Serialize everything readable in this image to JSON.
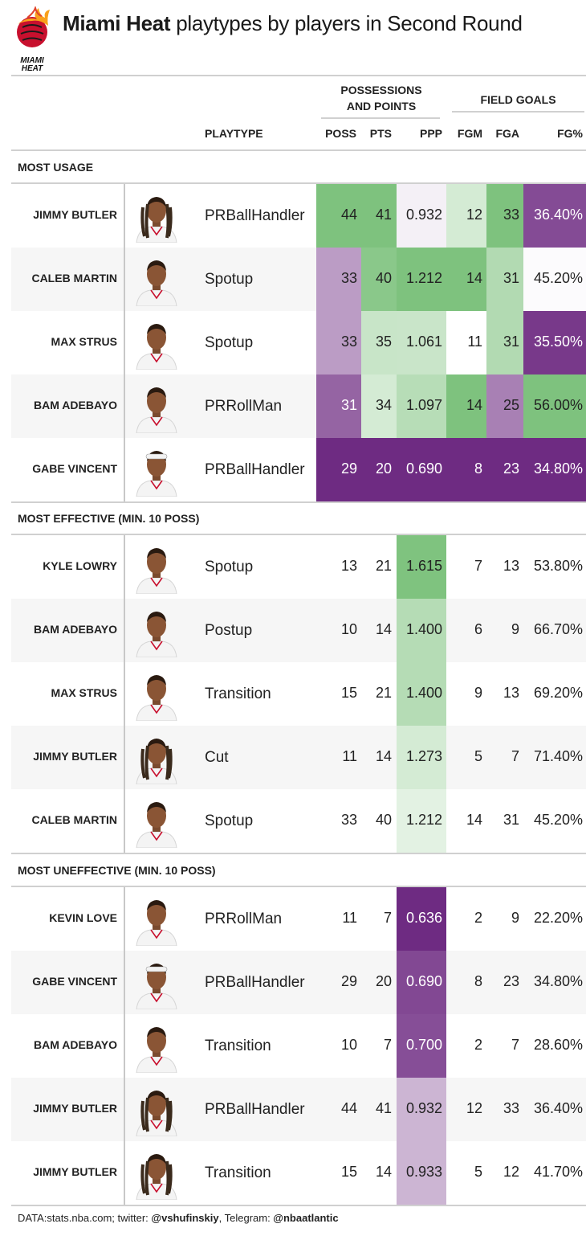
{
  "title": {
    "bold": "Miami Heat",
    "rest": " playtypes by players in Second Round"
  },
  "logo": {
    "icon": "miami-heat-logo",
    "wordmark_line1": "MIAMI",
    "wordmark_line2": "HEAT"
  },
  "headers": {
    "group1_line1": "POSSESSIONS",
    "group1_line2": "AND POINTS",
    "group2": "FIELD GOALS",
    "playtype": "PLAYTYPE",
    "poss": "POSS",
    "pts": "PTS",
    "ppp": "PPP",
    "fgm": "FGM",
    "fga": "FGA",
    "fgpct": "FG%"
  },
  "colors": {
    "green_strong": "#7ec27e",
    "purple_strong": "#6e2b82",
    "row_alt": "#f6f6f6",
    "rule": "#d0d0d0"
  },
  "chart_data": {
    "type": "table",
    "columns": [
      "PLAYTYPE",
      "POSS",
      "PTS",
      "PPP",
      "FGM",
      "FGA",
      "FG%"
    ],
    "sections": [
      {
        "title": "MOST USAGE",
        "rows": [
          {
            "player": "JIMMY BUTLER",
            "playtype": "PRBallHandler",
            "poss": "44",
            "pts": "41",
            "ppp": "0.932",
            "fgm": "12",
            "fga": "33",
            "fgpct": "36.40%"
          },
          {
            "player": "CALEB MARTIN",
            "playtype": "Spotup",
            "poss": "33",
            "pts": "40",
            "ppp": "1.212",
            "fgm": "14",
            "fga": "31",
            "fgpct": "45.20%"
          },
          {
            "player": "MAX STRUS",
            "playtype": "Spotup",
            "poss": "33",
            "pts": "35",
            "ppp": "1.061",
            "fgm": "11",
            "fga": "31",
            "fgpct": "35.50%"
          },
          {
            "player": "BAM ADEBAYO",
            "playtype": "PRRollMan",
            "poss": "31",
            "pts": "34",
            "ppp": "1.097",
            "fgm": "14",
            "fga": "25",
            "fgpct": "56.00%"
          },
          {
            "player": "GABE VINCENT",
            "playtype": "PRBallHandler",
            "poss": "29",
            "pts": "20",
            "ppp": "0.690",
            "fgm": "8",
            "fga": "23",
            "fgpct": "34.80%"
          }
        ]
      },
      {
        "title": "MOST EFFECTIVE (MIN. 10 POSS)",
        "rows": [
          {
            "player": "KYLE LOWRY",
            "playtype": "Spotup",
            "poss": "13",
            "pts": "21",
            "ppp": "1.615",
            "fgm": "7",
            "fga": "13",
            "fgpct": "53.80%"
          },
          {
            "player": "BAM ADEBAYO",
            "playtype": "Postup",
            "poss": "10",
            "pts": "14",
            "ppp": "1.400",
            "fgm": "6",
            "fga": "9",
            "fgpct": "66.70%"
          },
          {
            "player": "MAX STRUS",
            "playtype": "Transition",
            "poss": "15",
            "pts": "21",
            "ppp": "1.400",
            "fgm": "9",
            "fga": "13",
            "fgpct": "69.20%"
          },
          {
            "player": "JIMMY BUTLER",
            "playtype": "Cut",
            "poss": "11",
            "pts": "14",
            "ppp": "1.273",
            "fgm": "5",
            "fga": "7",
            "fgpct": "71.40%"
          },
          {
            "player": "CALEB MARTIN",
            "playtype": "Spotup",
            "poss": "33",
            "pts": "40",
            "ppp": "1.212",
            "fgm": "14",
            "fga": "31",
            "fgpct": "45.20%"
          }
        ]
      },
      {
        "title": "MOST UNEFFECTIVE (MIN. 10 POSS)",
        "rows": [
          {
            "player": "KEVIN LOVE",
            "playtype": "PRRollMan",
            "poss": "11",
            "pts": "7",
            "ppp": "0.636",
            "fgm": "2",
            "fga": "9",
            "fgpct": "22.20%"
          },
          {
            "player": "GABE VINCENT",
            "playtype": "PRBallHandler",
            "poss": "29",
            "pts": "20",
            "ppp": "0.690",
            "fgm": "8",
            "fga": "23",
            "fgpct": "34.80%"
          },
          {
            "player": "BAM ADEBAYO",
            "playtype": "Transition",
            "poss": "10",
            "pts": "7",
            "ppp": "0.700",
            "fgm": "2",
            "fga": "7",
            "fgpct": "28.60%"
          },
          {
            "player": "JIMMY BUTLER",
            "playtype": "PRBallHandler",
            "poss": "44",
            "pts": "41",
            "ppp": "0.932",
            "fgm": "12",
            "fga": "33",
            "fgpct": "36.40%"
          },
          {
            "player": "JIMMY BUTLER",
            "playtype": "Transition",
            "poss": "15",
            "pts": "14",
            "ppp": "0.933",
            "fgm": "5",
            "fga": "12",
            "fgpct": "41.70%"
          }
        ]
      }
    ]
  },
  "footer": {
    "prefix": "DATA:stats.nba.com; twitter: ",
    "twitter": "@vshufinskiy",
    "middle": ", Telegram: ",
    "telegram": "@nbaatlantic"
  }
}
